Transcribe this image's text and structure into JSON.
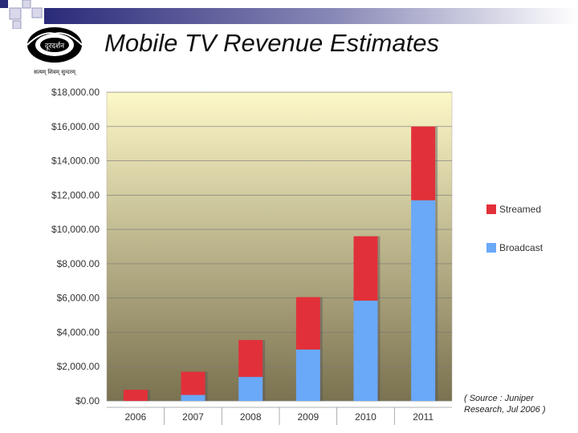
{
  "header": {
    "title": "Mobile TV Revenue Estimates",
    "logo_text": "दूरदर्शन",
    "logo_tagline": "सत्यम् शिवम् सुन्दरम्"
  },
  "source_note": "( Source : Juniper Research, Jul 2006 )",
  "colors": {
    "broadcast": "#6aa8f8",
    "streamed": "#e2303a",
    "topbar_dark": "#2a2a7a",
    "plot_top": "#fdf8c8",
    "plot_bottom": "#7a7250"
  },
  "chart_data": {
    "type": "bar",
    "stacked": true,
    "categories": [
      "2006",
      "2007",
      "2008",
      "2009",
      "2010",
      "2011"
    ],
    "series": [
      {
        "name": "Broadcast",
        "values": [
          0,
          350,
          1400,
          3000,
          5850,
          11700
        ]
      },
      {
        "name": "Streamed",
        "values": [
          650,
          1350,
          2150,
          3050,
          3750,
          4300
        ]
      }
    ],
    "yticks": [
      "$0.00",
      "$2,000.00",
      "$4,000.00",
      "$6,000.00",
      "$8,000.00",
      "$10,000.00",
      "$12,000.00",
      "$14,000.00",
      "$16,000.00",
      "$18,000.00"
    ],
    "ylim": [
      0,
      18000
    ],
    "ystep": 2000,
    "legend_order": [
      "Streamed",
      "Broadcast"
    ],
    "legend_position": "right",
    "grid": true
  }
}
